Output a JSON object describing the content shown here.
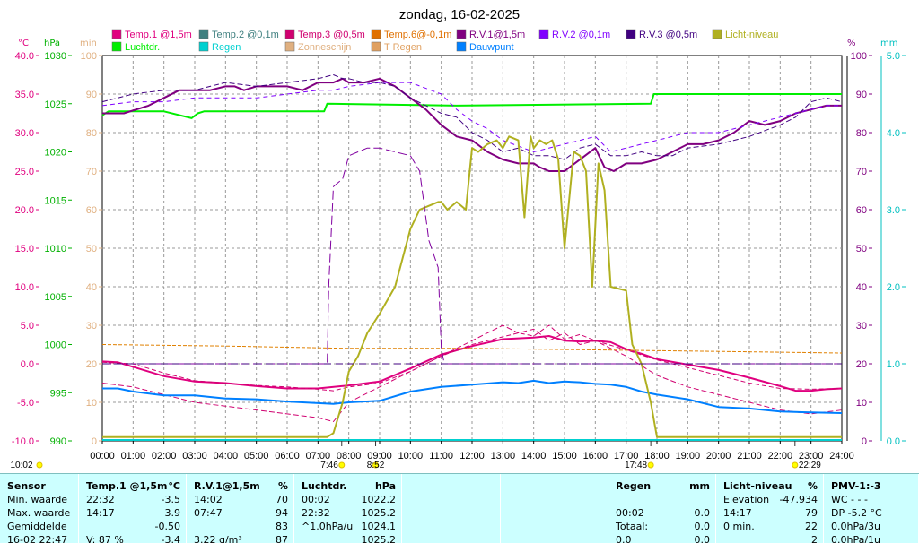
{
  "chart_data": {
    "type": "line",
    "title": "zondag, 16-02-2025",
    "axis_units": {
      "temp": "°C",
      "pressure": "hPa",
      "minutes": "min",
      "percent_left": "%",
      "percent_right": "%",
      "rain": "mm"
    },
    "y_temp": {
      "range": [
        -10,
        40
      ],
      "ticks": [
        "40.0",
        "35.0",
        "30.0",
        "25.0",
        "20.0",
        "15.0",
        "10.0",
        "5.0",
        "0.0",
        "-5.0",
        "-10.0"
      ]
    },
    "y_pressure": {
      "range": [
        990,
        1030
      ],
      "ticks": [
        "1030",
        "1025",
        "1020",
        "1015",
        "1010",
        "1005",
        "1000",
        "995",
        "990"
      ]
    },
    "y_minutes": {
      "range": [
        0,
        100
      ],
      "ticks": [
        "100",
        "90",
        "80",
        "70",
        "60",
        "50",
        "40",
        "30",
        "20",
        "10",
        "0"
      ]
    },
    "y_percent": {
      "range": [
        0,
        100
      ],
      "ticks": [
        "100",
        "90",
        "80",
        "70",
        "60",
        "50",
        "40",
        "30",
        "20",
        "10",
        "0"
      ]
    },
    "y_rain": {
      "range": [
        0,
        5
      ],
      "ticks": [
        "5.0",
        "4.0",
        "3.0",
        "2.0",
        "1.0",
        "0.0"
      ]
    },
    "x_ticks": [
      "00:00",
      "01:00",
      "02:00",
      "03:00",
      "04:00",
      "05:00",
      "06:00",
      "07:00",
      "08:00",
      "09:00",
      "10:00",
      "11:00",
      "12:00",
      "13:00",
      "14:00",
      "15:00",
      "16:00",
      "17:00",
      "18:00",
      "19:00",
      "20:00",
      "21:00",
      "22:00",
      "23:00",
      "24:00"
    ],
    "x_range": [
      0,
      24
    ],
    "legend": [
      {
        "label": "Temp.1 @1,5m",
        "color": "#e0007f"
      },
      {
        "label": "Temp.2 @0,1m",
        "color": "#408080"
      },
      {
        "label": "Temp.3 @0,5m",
        "color": "#d00070"
      },
      {
        "label": "Temp.6@-0,1m",
        "color": "#e07000"
      },
      {
        "label": "R.V.1@1,5m",
        "color": "#800080"
      },
      {
        "label": "R.V.2 @0,1m",
        "color": "#8000ff"
      },
      {
        "label": "R.V.3 @0,5m",
        "color": "#400080"
      },
      {
        "label": "Licht-niveau",
        "color": "#b0b020"
      },
      {
        "label": "Luchtdr.",
        "color": "#00ee00"
      },
      {
        "label": "Regen",
        "color": "#00d0d0"
      },
      {
        "label": "Zonneschijn",
        "color": "#e0b080"
      },
      {
        "label": "T Regen",
        "color": "#e0a060"
      },
      {
        "label": "Dauwpunt",
        "color": "#0080ff"
      }
    ],
    "series": [
      {
        "name": "Luchtdr.",
        "color": "#00ee00",
        "axis": "pressure",
        "x": [
          0,
          0.2,
          2,
          2.9,
          3.1,
          3.3,
          7.2,
          7.3,
          11.5,
          17.8,
          17.9,
          24
        ],
        "values": [
          1023.8,
          1024.2,
          1024.2,
          1023.5,
          1024.0,
          1024.2,
          1024.2,
          1025.0,
          1024.8,
          1025.0,
          1026.0,
          1026.0
        ]
      },
      {
        "name": "R.V.1@1,5m",
        "color": "#800080",
        "axis": "percent",
        "x": [
          0,
          0.7,
          1.5,
          2,
          2.5,
          3,
          3.5,
          4,
          4.3,
          4.6,
          5,
          5.5,
          6,
          6.5,
          7,
          7.5,
          7.8,
          8,
          8.5,
          9,
          9.5,
          10,
          10.5,
          11,
          11.5,
          12,
          12.5,
          13,
          13.5,
          14,
          14.2,
          14.5,
          15,
          15.5,
          16,
          16.3,
          16.6,
          17,
          17.5,
          18,
          18.5,
          19,
          19.5,
          20,
          20.5,
          21,
          21.5,
          22,
          22.5,
          23,
          23.5,
          24
        ],
        "values": [
          85,
          85,
          87,
          89,
          91,
          91,
          91,
          92,
          92,
          91,
          92,
          92,
          92,
          91,
          93,
          93,
          94,
          93,
          93,
          94,
          92,
          89,
          86,
          82,
          79,
          78,
          75,
          73,
          72,
          72,
          71,
          70,
          70,
          73,
          76,
          71,
          70,
          72,
          72,
          73,
          75,
          77,
          77,
          78,
          80,
          83,
          82,
          83,
          85,
          86,
          87,
          87
        ]
      },
      {
        "name": "R.V.2 @0,1m",
        "color": "#8000ff",
        "axis": "percent",
        "x": [
          0,
          1,
          2,
          3,
          4,
          5,
          6,
          7,
          7.5,
          8,
          9,
          10,
          11,
          11.5,
          12,
          12.5,
          13,
          14,
          15,
          15.5,
          16,
          16.5,
          17,
          18,
          19,
          20,
          21,
          22,
          23,
          23.5,
          24
        ],
        "values": [
          87,
          88,
          88,
          89,
          89,
          89,
          90,
          91,
          91,
          92,
          93,
          93,
          90,
          86,
          83,
          81,
          78,
          75,
          77,
          78,
          79,
          75,
          76,
          78,
          80,
          80,
          82,
          84,
          86,
          87,
          87
        ]
      },
      {
        "name": "R.V.3 @0,5m",
        "color": "#400080",
        "axis": "percent",
        "x": [
          0,
          1,
          2,
          3,
          3.5,
          4,
          5,
          6,
          7,
          7.5,
          7.8,
          8,
          8.5,
          9,
          9.5,
          10,
          10.5,
          11,
          11.5,
          12,
          12.5,
          13,
          13.5,
          14,
          14.5,
          15,
          15.5,
          16,
          16.5,
          17,
          17.5,
          18,
          18.5,
          19,
          20,
          21,
          22,
          22.5,
          23,
          23.5,
          24
        ],
        "values": [
          88,
          90,
          91,
          91,
          92,
          93,
          92,
          93,
          94,
          95,
          94,
          94,
          93,
          93,
          92,
          89,
          87,
          85,
          84,
          80,
          78,
          75,
          76,
          74,
          74,
          73,
          76,
          77,
          74,
          74,
          75,
          74,
          74,
          76,
          77,
          79,
          82,
          84,
          88,
          89,
          88
        ]
      },
      {
        "name": "Temp.1 @1,5m",
        "color": "#e0007f",
        "axis": "temp",
        "x": [
          0,
          0.5,
          1,
          2,
          3,
          4,
          5,
          6,
          7,
          8,
          9,
          10,
          11,
          12,
          13,
          14,
          14.5,
          15,
          15.5,
          16,
          16.5,
          17,
          17.5,
          18,
          19,
          20,
          21,
          22,
          22.5,
          23,
          23.5,
          24
        ],
        "values": [
          0.3,
          0.2,
          -0.4,
          -1.6,
          -2.3,
          -2.5,
          -2.9,
          -3.2,
          -3.2,
          -2.8,
          -2.3,
          -0.6,
          1.2,
          2.3,
          3.2,
          3.4,
          3.6,
          3.0,
          2.9,
          3.0,
          2.8,
          1.9,
          1.3,
          0.6,
          -0.1,
          -0.8,
          -1.8,
          -2.9,
          -3.5,
          -3.5,
          -3.3,
          -3.2
        ]
      },
      {
        "name": "Temp.3 @0,5m",
        "color": "#d00070",
        "axis": "temp",
        "x": [
          0,
          1,
          2,
          3,
          4,
          5,
          6,
          7,
          7.5,
          8,
          9,
          10,
          11,
          12,
          13,
          13.5,
          14,
          14.5,
          15,
          15.5,
          16,
          17,
          18,
          19,
          20,
          21,
          22,
          23,
          24
        ],
        "values": [
          0.2,
          0,
          -1.2,
          -2.2,
          -2.5,
          -2.8,
          -3,
          -3.3,
          -3.5,
          -3,
          -2.5,
          -1,
          1,
          2.5,
          3.5,
          4,
          3.6,
          5,
          3.2,
          3.8,
          3,
          1.8,
          0.5,
          -0.5,
          -1.5,
          -2.5,
          -3.2,
          -3.3,
          -3.2
        ]
      },
      {
        "name": "Temp.2 @0,1m",
        "color": "#d00070",
        "axis": "temp",
        "x": [
          0,
          1,
          2,
          3,
          4,
          5,
          6,
          7,
          7.5,
          8,
          9,
          10,
          11,
          12,
          13,
          13.5,
          14,
          14.5,
          15,
          15.5,
          16,
          17,
          18,
          19,
          20,
          21,
          22,
          23,
          24
        ],
        "values": [
          -2.5,
          -3,
          -4,
          -5,
          -5.5,
          -6,
          -6.5,
          -7,
          -7.5,
          -5,
          -3,
          -1,
          1,
          3,
          5,
          4,
          4.5,
          3,
          4,
          2.5,
          3,
          1,
          -1.5,
          -3,
          -4,
          -5,
          -6,
          -6.5,
          -6
        ]
      },
      {
        "name": "Temp.6@-0,1m",
        "color": "#e08000",
        "axis": "temp",
        "x": [
          0,
          4,
          8,
          12,
          16,
          20,
          24
        ],
        "values": [
          2.5,
          2.3,
          2.0,
          2.0,
          1.8,
          1.6,
          1.4
        ]
      },
      {
        "name": "Dauwpunt",
        "color": "#0080ff",
        "axis": "temp",
        "x": [
          0,
          0.5,
          1,
          2,
          3,
          4,
          5,
          6,
          7,
          7.5,
          8,
          9,
          10,
          11,
          12,
          13,
          13.5,
          14,
          14.5,
          15,
          15.5,
          16,
          16.5,
          17,
          17.5,
          18,
          19,
          20,
          21,
          22,
          23,
          24
        ],
        "values": [
          -3.2,
          -3.2,
          -3.6,
          -4.1,
          -4.1,
          -4.5,
          -4.6,
          -4.9,
          -5.1,
          -5.2,
          -5.0,
          -4.8,
          -3.6,
          -3,
          -2.7,
          -2.4,
          -2.5,
          -2.2,
          -2.5,
          -2.3,
          -2.4,
          -2.6,
          -2.7,
          -3.0,
          -3.6,
          -4.0,
          -4.6,
          -5.6,
          -5.8,
          -6.2,
          -6.3,
          -6.4
        ]
      },
      {
        "name": "Licht-niveau",
        "color": "#b0b020",
        "axis": "percent",
        "x": [
          0,
          0.3,
          7.3,
          7.5,
          7.8,
          8,
          8.3,
          8.6,
          9,
          9.5,
          10,
          10.3,
          10.6,
          10.9,
          11,
          11.2,
          11.5,
          11.8,
          12,
          12.2,
          12.5,
          12.8,
          13,
          13.2,
          13.5,
          13.7,
          13.9,
          14,
          14.2,
          14.4,
          14.6,
          14.8,
          15,
          15.3,
          15.5,
          15.7,
          15.9,
          16.1,
          16.3,
          16.5,
          17,
          17.2,
          17.5,
          17.8,
          18,
          18.3,
          24
        ],
        "values": [
          1,
          1,
          1,
          2,
          10,
          18,
          22,
          28,
          33,
          40,
          55,
          60,
          61,
          62,
          62,
          60,
          62,
          60,
          76,
          75,
          77,
          78,
          76,
          79,
          78,
          58,
          79,
          76,
          78,
          77,
          78,
          73,
          50,
          75,
          74,
          70,
          40,
          72,
          65,
          40,
          39,
          25,
          20,
          10,
          1,
          1,
          1
        ]
      },
      {
        "name": "Zonneschijn",
        "color": "#8000a0",
        "axis": "minutes",
        "x": [
          0,
          7.3,
          7.35,
          7.5,
          7.8,
          8,
          8.3,
          8.6,
          9,
          9.5,
          10,
          10.3,
          10.6,
          10.9,
          11,
          11.1,
          24
        ],
        "values": [
          20,
          20,
          40,
          66,
          68,
          74,
          75,
          76,
          76,
          75,
          74,
          70,
          52,
          45,
          24,
          20,
          20
        ]
      }
    ],
    "markers": {
      "sunrise": "7:46",
      "noon": "8:52",
      "sunset": "17:48",
      "moonset": "22:29",
      "time_label": "10:02"
    },
    "sunrise_x": 7.77,
    "noon_x": 8.87,
    "sunset_x": 17.8,
    "moonset_x": 22.48
  },
  "table": [
    {
      "header": [
        "Sensor",
        ""
      ],
      "rows": [
        [
          "Min. waarde",
          ""
        ],
        [
          "Max. waarde",
          ""
        ],
        [
          "Gemiddelde",
          ""
        ],
        [
          "16-02 22:47",
          ""
        ]
      ]
    },
    {
      "header": [
        "Temp.1 @1,5m",
        "°C"
      ],
      "rows": [
        [
          "22:32",
          "-3.5"
        ],
        [
          "14:17",
          "3.9"
        ],
        [
          "",
          "-0.50"
        ],
        [
          "V: 87 %",
          "-3.4"
        ]
      ]
    },
    {
      "header": [
        "R.V.1@1,5m",
        "%"
      ],
      "rows": [
        [
          "14:02",
          "70"
        ],
        [
          "07:47",
          "94"
        ],
        [
          "",
          "83"
        ],
        [
          "3.22 g/m³",
          "87"
        ]
      ]
    },
    {
      "header": [
        "Luchtdr.",
        "hPa"
      ],
      "rows": [
        [
          "00:02",
          "1022.2"
        ],
        [
          "22:32",
          "1025.2"
        ],
        [
          "^1.0hPa/u",
          "1024.1"
        ],
        [
          "",
          "1025.2"
        ]
      ]
    },
    {
      "header": [
        "",
        ""
      ],
      "rows": [
        [
          "",
          ""
        ],
        [
          "",
          ""
        ],
        [
          "",
          ""
        ],
        [
          "",
          ""
        ]
      ]
    },
    {
      "header": [
        "",
        ""
      ],
      "rows": [
        [
          "",
          ""
        ],
        [
          "",
          ""
        ],
        [
          "",
          ""
        ],
        [
          "",
          ""
        ]
      ]
    },
    {
      "header": [
        "Regen",
        "mm"
      ],
      "rows": [
        [
          "",
          ""
        ],
        [
          "00:02",
          "0.0"
        ],
        [
          "Totaal:",
          "0.0"
        ],
        [
          "0.0",
          "0.0"
        ]
      ]
    },
    {
      "header": [
        "Licht-niveau",
        "%"
      ],
      "rows": [
        [
          "Elevation",
          "-47.934"
        ],
        [
          "14:17",
          "79"
        ],
        [
          "0 min.",
          "22"
        ],
        [
          "",
          "2"
        ]
      ]
    },
    {
      "header": [
        "PMV-1:-3",
        ""
      ],
      "rows": [
        [
          "WC - - -",
          ""
        ],
        [
          "DP -5.2 °C",
          ""
        ],
        [
          "0.0hPa/3u",
          ""
        ],
        [
          "0.0hPa/1u",
          ""
        ]
      ]
    }
  ]
}
